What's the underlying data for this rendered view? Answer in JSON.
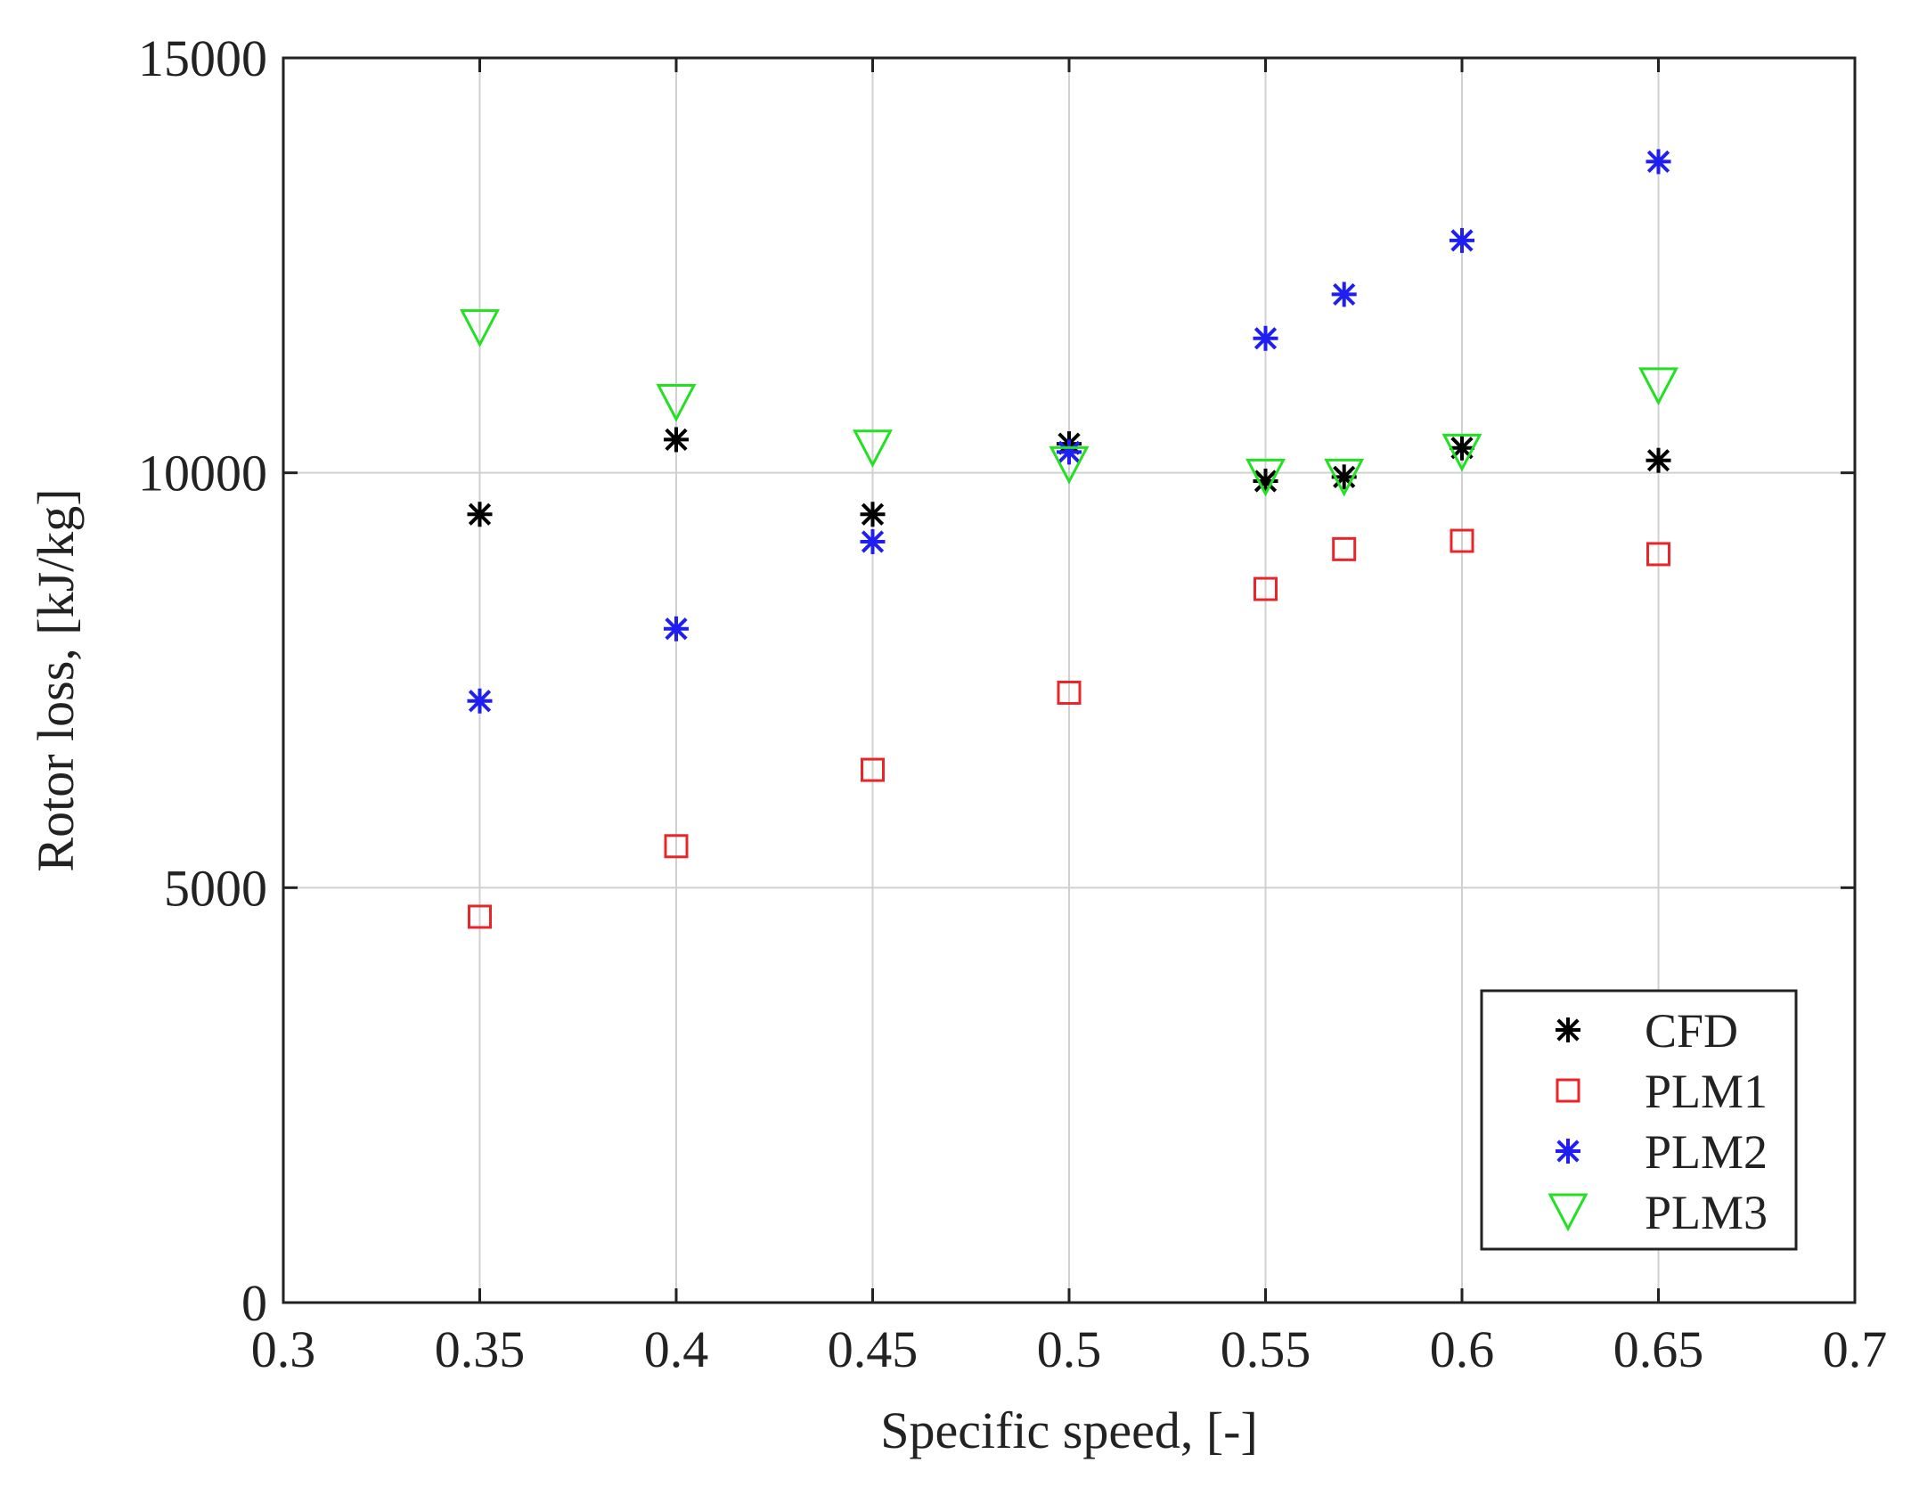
{
  "chart_data": {
    "type": "scatter",
    "title": "",
    "xlabel": "Specific speed, [-]",
    "ylabel": "Rotor loss, [kJ/kg]",
    "xlim": [
      0.3,
      0.7
    ],
    "ylim": [
      0,
      15000
    ],
    "grid": true,
    "legend_position": "bottom-right",
    "x_ticks": [
      0.3,
      0.35,
      0.4,
      0.45,
      0.5,
      0.55,
      0.6,
      0.65,
      0.7
    ],
    "x_tick_labels": [
      "0.3",
      "0.35",
      "0.4",
      "0.45",
      "0.5",
      "0.55",
      "0.6",
      "0.65",
      "0.7"
    ],
    "y_ticks": [
      0,
      5000,
      10000,
      15000
    ],
    "y_tick_labels": [
      "0",
      "5000",
      "10000",
      "15000"
    ],
    "series": [
      {
        "name": "CFD",
        "marker": "asterisk",
        "color": "#000000",
        "x": [
          0.35,
          0.4,
          0.45,
          0.5,
          0.55,
          0.57,
          0.6,
          0.65
        ],
        "y": [
          9500,
          10400,
          9500,
          10350,
          9900,
          9950,
          10300,
          10150
        ]
      },
      {
        "name": "PLM1",
        "marker": "square",
        "color": "#e8262a",
        "x": [
          0.35,
          0.4,
          0.45,
          0.5,
          0.55,
          0.57,
          0.6,
          0.65
        ],
        "y": [
          4650,
          5500,
          6420,
          7350,
          8600,
          9080,
          9180,
          9020
        ]
      },
      {
        "name": "PLM2",
        "marker": "asterisk",
        "color": "#1f1ff2",
        "x": [
          0.35,
          0.4,
          0.45,
          0.5,
          0.55,
          0.57,
          0.6,
          0.65
        ],
        "y": [
          7250,
          8120,
          9170,
          10250,
          11620,
          12150,
          12800,
          13750
        ]
      },
      {
        "name": "PLM3",
        "marker": "triangle-down",
        "color": "#22e022",
        "x": [
          0.35,
          0.4,
          0.45,
          0.5,
          0.55,
          0.57,
          0.6,
          0.65
        ],
        "y": [
          11750,
          10850,
          10300,
          10100,
          9950,
          9950,
          10250,
          11050
        ]
      }
    ]
  }
}
